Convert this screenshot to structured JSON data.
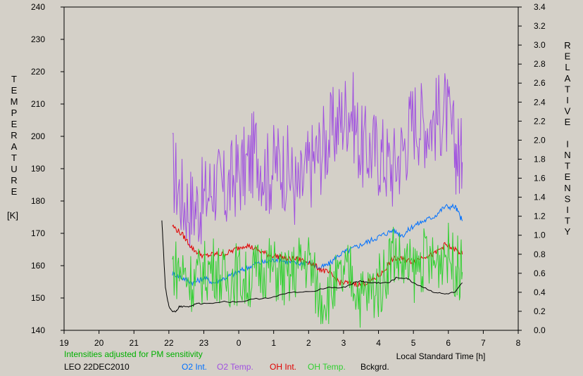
{
  "chart_data": {
    "type": "line",
    "xlabel": "Local Standard Time [h]",
    "y_left_label": "TEMPERATURE",
    "y_left_unit": "[K]",
    "y_right_label": "RELATIVE INTENSITY",
    "footer_note": "Intensities adjusted for PM sensitivity",
    "station_date": "LEO 22DEC2010",
    "x_ticks": [
      "19",
      "20",
      "21",
      "22",
      "23",
      "0",
      "1",
      "2",
      "3",
      "4",
      "5",
      "6",
      "7",
      "8"
    ],
    "x_range_hours_continuous": [
      19,
      32
    ],
    "y_left_ticks": [
      140,
      150,
      160,
      170,
      180,
      190,
      200,
      210,
      220,
      230,
      240
    ],
    "y_left_range": [
      140,
      240
    ],
    "y_right_ticks": [
      "0.0",
      "0.2",
      "0.4",
      "0.6",
      "0.8",
      "1.0",
      "1.2",
      "1.4",
      "1.6",
      "1.8",
      "2.0",
      "2.2",
      "2.4",
      "2.6",
      "2.8",
      "3.0",
      "3.2",
      "3.4"
    ],
    "y_right_range": [
      0.0,
      3.4
    ],
    "colors": {
      "background": "#d4d0c8",
      "o2_int": "#0070ff",
      "o2_temp": "#a050e0",
      "oh_int": "#e00000",
      "oh_temp": "#30d030",
      "bckgrd": "#000000",
      "note": "#00b000"
    },
    "legend": [
      {
        "key": "o2_int",
        "label": "O2 Int."
      },
      {
        "key": "o2_temp",
        "label": "O2 Temp."
      },
      {
        "key": "oh_int",
        "label": "OH Int."
      },
      {
        "key": "oh_temp",
        "label": "OH Temp."
      },
      {
        "key": "bckgrd",
        "label": "Bckgrd."
      }
    ],
    "series": [
      {
        "name": "O2 Temp.",
        "axis": "left",
        "x": [
          22.1,
          22.4,
          22.7,
          23.0,
          23.3,
          23.6,
          23.9,
          24.2,
          24.5,
          24.8,
          25.1,
          25.4,
          25.7,
          26.0,
          26.3,
          26.6,
          26.9,
          27.2,
          27.5,
          27.8,
          28.1,
          28.4,
          28.7,
          29.0,
          29.3,
          29.6,
          29.9,
          30.2,
          30.4
        ],
        "y": [
          190,
          180,
          178,
          180,
          186,
          182,
          188,
          190,
          196,
          188,
          192,
          190,
          182,
          190,
          195,
          200,
          205,
          210,
          196,
          196,
          194,
          190,
          196,
          206,
          204,
          205,
          208,
          196,
          192
        ]
      },
      {
        "name": "O2 Int.",
        "axis": "right",
        "x": [
          22.1,
          22.4,
          22.7,
          23.0,
          23.3,
          23.6,
          23.9,
          24.2,
          24.5,
          24.8,
          25.1,
          25.4,
          25.7,
          26.0,
          26.3,
          26.6,
          26.9,
          27.2,
          27.5,
          27.8,
          28.1,
          28.4,
          28.7,
          29.0,
          29.3,
          29.6,
          29.9,
          30.2,
          30.4
        ],
        "y": [
          0.6,
          0.55,
          0.5,
          0.55,
          0.5,
          0.55,
          0.6,
          0.65,
          0.7,
          0.72,
          0.75,
          0.72,
          0.7,
          0.72,
          0.65,
          0.7,
          0.8,
          0.85,
          0.9,
          0.95,
          1.0,
          1.05,
          1.0,
          1.1,
          1.15,
          1.2,
          1.3,
          1.3,
          1.15
        ]
      },
      {
        "name": "OH Int.",
        "axis": "right",
        "x": [
          22.1,
          22.4,
          22.7,
          23.0,
          23.3,
          23.6,
          23.9,
          24.2,
          24.5,
          24.8,
          25.1,
          25.4,
          25.7,
          26.0,
          26.3,
          26.6,
          26.9,
          27.2,
          27.5,
          27.8,
          28.1,
          28.4,
          28.7,
          29.0,
          29.3,
          29.6,
          29.9,
          30.2,
          30.4
        ],
        "y": [
          1.1,
          1.0,
          0.85,
          0.78,
          0.8,
          0.8,
          0.85,
          0.9,
          0.85,
          0.8,
          0.78,
          0.75,
          0.75,
          0.72,
          0.65,
          0.6,
          0.5,
          0.5,
          0.48,
          0.52,
          0.6,
          0.75,
          0.75,
          0.72,
          0.78,
          0.8,
          0.9,
          0.85,
          0.8
        ]
      },
      {
        "name": "OH Temp.",
        "axis": "left",
        "x": [
          22.1,
          22.4,
          22.7,
          23.0,
          23.3,
          23.6,
          23.9,
          24.2,
          24.5,
          24.8,
          25.1,
          25.4,
          25.7,
          26.0,
          26.3,
          26.6,
          26.9,
          27.2,
          27.5,
          27.8,
          28.1,
          28.4,
          28.7,
          29.0,
          29.3,
          29.6,
          29.9,
          30.2,
          30.4
        ],
        "y": [
          160,
          158,
          155,
          158,
          160,
          155,
          158,
          155,
          158,
          160,
          158,
          155,
          160,
          162,
          150,
          152,
          155,
          158,
          150,
          152,
          155,
          165,
          160,
          158,
          162,
          160,
          165,
          160,
          158
        ]
      },
      {
        "name": "Bckgrd.",
        "axis": "right",
        "x": [
          21.8,
          21.85,
          21.9,
          22.0,
          22.1,
          22.2,
          22.3,
          22.4,
          22.6,
          22.8,
          23.0,
          23.5,
          24.0,
          24.5,
          25.0,
          25.5,
          26.0,
          26.5,
          27.0,
          27.3,
          27.5,
          27.7,
          28.0,
          28.3,
          28.5,
          28.8,
          29.0,
          29.3,
          29.6,
          29.9,
          30.2,
          30.4
        ],
        "y": [
          1.15,
          0.8,
          0.45,
          0.25,
          0.2,
          0.2,
          0.25,
          0.25,
          0.25,
          0.28,
          0.28,
          0.3,
          0.3,
          0.33,
          0.35,
          0.4,
          0.4,
          0.45,
          0.45,
          0.5,
          0.52,
          0.5,
          0.5,
          0.5,
          0.55,
          0.55,
          0.5,
          0.45,
          0.4,
          0.38,
          0.4,
          0.5
        ]
      }
    ]
  }
}
